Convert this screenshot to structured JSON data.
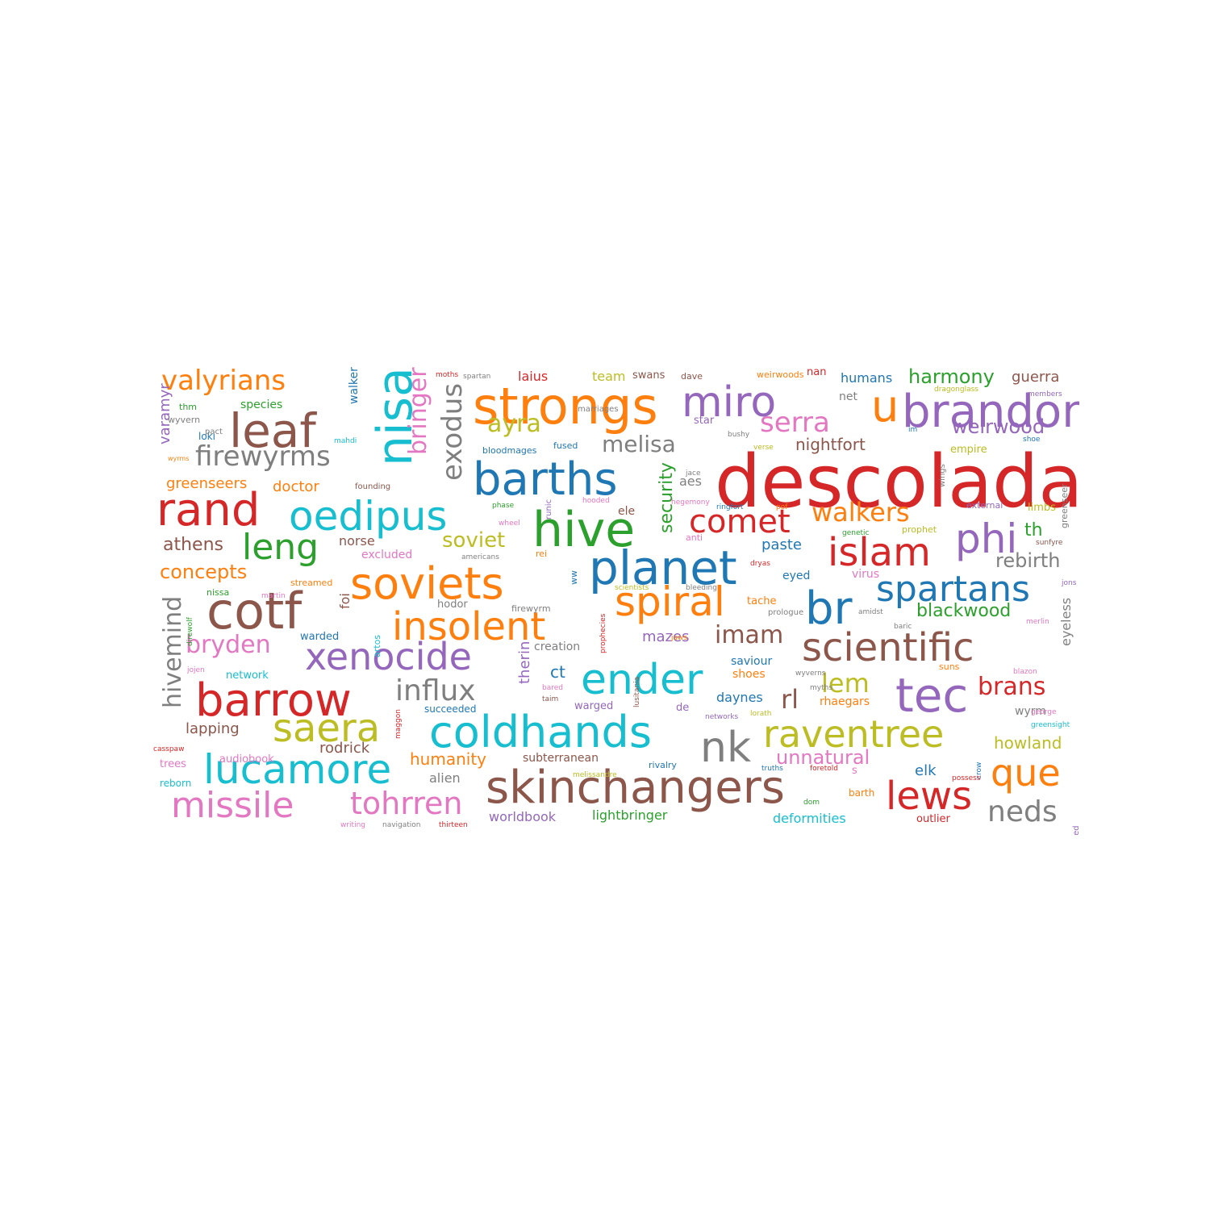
{
  "palette": {
    "blue": "#1f77b4",
    "orange": "#ff7f0e",
    "green": "#2ca02c",
    "red": "#d62728",
    "purple": "#9467bd",
    "brown": "#8c564b",
    "pink": "#e377c2",
    "gray": "#7f7f7f",
    "olive": "#bcbd22",
    "cyan": "#17becf"
  },
  "words": [
    {
      "text": "descolada",
      "color": "red",
      "weight": 100
    },
    {
      "text": "strongs",
      "color": "orange",
      "weight": 82
    },
    {
      "text": "miro",
      "color": "purple",
      "weight": 75
    },
    {
      "text": "brandon",
      "color": "purple",
      "weight": 70
    },
    {
      "text": "barths",
      "color": "blue",
      "weight": 75
    },
    {
      "text": "hive",
      "color": "green",
      "weight": 80
    },
    {
      "text": "oedipus",
      "color": "cyan",
      "weight": 68
    },
    {
      "text": "rand",
      "color": "red",
      "weight": 70
    },
    {
      "text": "leaf",
      "color": "brown",
      "weight": 66
    },
    {
      "text": "nisa",
      "color": "cyan",
      "weight": 60
    },
    {
      "text": "planet",
      "color": "blue",
      "weight": 73
    },
    {
      "text": "islam",
      "color": "red",
      "weight": 62
    },
    {
      "text": "phi",
      "color": "purple",
      "weight": 60
    },
    {
      "text": "soviets",
      "color": "orange",
      "weight": 70
    },
    {
      "text": "cotf",
      "color": "brown",
      "weight": 80
    },
    {
      "text": "insolent",
      "color": "orange",
      "weight": 66
    },
    {
      "text": "spiral",
      "color": "orange",
      "weight": 58
    },
    {
      "text": "br",
      "color": "blue",
      "weight": 68
    },
    {
      "text": "spartans",
      "color": "blue",
      "weight": 58
    },
    {
      "text": "scientific",
      "color": "brown",
      "weight": 64
    },
    {
      "text": "xenocide",
      "color": "purple",
      "weight": 62
    },
    {
      "text": "ender",
      "color": "cyan",
      "weight": 64
    },
    {
      "text": "tec",
      "color": "purple",
      "weight": 74
    },
    {
      "text": "barrow",
      "color": "red",
      "weight": 74
    },
    {
      "text": "coldhands",
      "color": "cyan",
      "weight": 68
    },
    {
      "text": "nk",
      "color": "gray",
      "weight": 62
    },
    {
      "text": "raventree",
      "color": "olive",
      "weight": 58
    },
    {
      "text": "saera",
      "color": "olive",
      "weight": 58
    },
    {
      "text": "lucamore",
      "color": "cyan",
      "weight": 60
    },
    {
      "text": "skinchangers",
      "color": "brown",
      "weight": 68
    },
    {
      "text": "que",
      "color": "orange",
      "weight": 56
    },
    {
      "text": "lews",
      "color": "red",
      "weight": 58
    },
    {
      "text": "missile",
      "color": "pink",
      "weight": 58
    },
    {
      "text": "tohrren",
      "color": "pink",
      "weight": 48
    },
    {
      "text": "u",
      "color": "orange",
      "weight": 68
    },
    {
      "text": "comet",
      "color": "red",
      "weight": 50
    },
    {
      "text": "leng",
      "color": "green",
      "weight": 52
    },
    {
      "text": "valyrians",
      "color": "orange",
      "weight": 46
    },
    {
      "text": "firewyrms",
      "color": "gray",
      "weight": 46
    },
    {
      "text": "exodus",
      "color": "gray",
      "weight": 44
    },
    {
      "text": "bringer",
      "color": "pink",
      "weight": 42
    },
    {
      "text": "serra",
      "color": "pink",
      "weight": 44
    },
    {
      "text": "melisa",
      "color": "gray",
      "weight": 36
    },
    {
      "text": "ayra",
      "color": "olive",
      "weight": 40
    },
    {
      "text": "walkers",
      "color": "orange",
      "weight": 40
    },
    {
      "text": "influx",
      "color": "gray",
      "weight": 46
    },
    {
      "text": "imam",
      "color": "brown",
      "weight": 38
    },
    {
      "text": "bryden",
      "color": "pink",
      "weight": 40
    },
    {
      "text": "hivemind",
      "color": "gray",
      "weight": 40
    },
    {
      "text": "neds",
      "color": "gray",
      "weight": 44
    },
    {
      "text": "brans",
      "color": "red",
      "weight": 38
    },
    {
      "text": "lem",
      "color": "olive",
      "weight": 40
    },
    {
      "text": "rl",
      "color": "brown",
      "weight": 38
    },
    {
      "text": "weirwood",
      "color": "purple",
      "weight": 32
    },
    {
      "text": "harmony",
      "color": "green",
      "weight": 30
    },
    {
      "text": "rebirth",
      "color": "gray",
      "weight": 30
    },
    {
      "text": "blackwood",
      "color": "green",
      "weight": 28
    },
    {
      "text": "soviet",
      "color": "olive",
      "weight": 30
    },
    {
      "text": "security",
      "color": "green",
      "weight": 28
    },
    {
      "text": "unnatural",
      "color": "pink",
      "weight": 30
    },
    {
      "text": "concepts",
      "color": "orange",
      "weight": 28
    },
    {
      "text": "athens",
      "color": "brown",
      "weight": 26
    },
    {
      "text": "nightfort",
      "color": "brown",
      "weight": 24
    },
    {
      "text": "humanity",
      "color": "orange",
      "weight": 24
    },
    {
      "text": "rodrick",
      "color": "brown",
      "weight": 22
    },
    {
      "text": "lapping",
      "color": "brown",
      "weight": 22
    },
    {
      "text": "doctor",
      "color": "orange",
      "weight": 22
    },
    {
      "text": "greenseers",
      "color": "orange",
      "weight": 20
    },
    {
      "text": "varamyr",
      "color": "purple",
      "weight": 24
    },
    {
      "text": "mazes",
      "color": "purple",
      "weight": 22
    },
    {
      "text": "howland",
      "color": "olive",
      "weight": 24
    },
    {
      "text": "paste",
      "color": "blue",
      "weight": 22
    },
    {
      "text": "ct",
      "color": "blue",
      "weight": 24
    },
    {
      "text": "therin",
      "color": "purple",
      "weight": 22
    },
    {
      "text": "lightbringer",
      "color": "green",
      "weight": 20
    },
    {
      "text": "worldbook",
      "color": "purple",
      "weight": 20
    },
    {
      "text": "deformities",
      "color": "cyan",
      "weight": 20
    },
    {
      "text": "daynes",
      "color": "blue",
      "weight": 20
    },
    {
      "text": "aes",
      "color": "gray",
      "weight": 18
    },
    {
      "text": "elk",
      "color": "blue",
      "weight": 22
    },
    {
      "text": "guerra",
      "color": "brown",
      "weight": 20
    },
    {
      "text": "humans",
      "color": "blue",
      "weight": 18
    },
    {
      "text": "eyeless",
      "color": "gray",
      "weight": 20
    },
    {
      "text": "laius",
      "color": "red",
      "weight": 18
    },
    {
      "text": "team",
      "color": "olive",
      "weight": 18
    },
    {
      "text": "species",
      "color": "green",
      "weight": 16
    },
    {
      "text": "walker",
      "color": "blue",
      "weight": 16
    },
    {
      "text": "norse",
      "color": "brown",
      "weight": 18
    },
    {
      "text": "foi",
      "color": "brown",
      "weight": 18
    },
    {
      "text": "excluded",
      "color": "pink",
      "weight": 16
    },
    {
      "text": "alien",
      "color": "gray",
      "weight": 18
    },
    {
      "text": "creation",
      "color": "gray",
      "weight": 16
    },
    {
      "text": "subterranean",
      "color": "brown",
      "weight": 16
    },
    {
      "text": "hodor",
      "color": "gray",
      "weight": 14
    },
    {
      "text": "warded",
      "color": "blue",
      "weight": 14
    },
    {
      "text": "network",
      "color": "cyan",
      "weight": 14
    },
    {
      "text": "audiobook",
      "color": "pink",
      "weight": 14
    },
    {
      "text": "trees",
      "color": "pink",
      "weight": 14
    },
    {
      "text": "reborn",
      "color": "cyan",
      "weight": 12
    },
    {
      "text": "succeeded",
      "color": "blue",
      "weight": 12
    },
    {
      "text": "warged",
      "color": "purple",
      "weight": 14
    },
    {
      "text": "rhaegars",
      "color": "orange",
      "weight": 16
    },
    {
      "text": "wyrm",
      "color": "gray",
      "weight": 16
    },
    {
      "text": "outlier",
      "color": "red",
      "weight": 14
    },
    {
      "text": "barth",
      "color": "orange",
      "weight": 12
    },
    {
      "text": "shoes",
      "color": "orange",
      "weight": 16
    },
    {
      "text": "saviour",
      "color": "blue",
      "weight": 14
    },
    {
      "text": "eyed",
      "color": "blue",
      "weight": 16
    },
    {
      "text": "virus",
      "color": "pink",
      "weight": 16
    },
    {
      "text": "tache",
      "color": "orange",
      "weight": 14
    },
    {
      "text": "nan",
      "color": "red",
      "weight": 14
    },
    {
      "text": "net",
      "color": "gray",
      "weight": 16
    },
    {
      "text": "swans",
      "color": "brown",
      "weight": 14
    },
    {
      "text": "dave",
      "color": "brown",
      "weight": 12
    },
    {
      "text": "weirwoods",
      "color": "orange",
      "weight": 12
    },
    {
      "text": "star",
      "color": "purple",
      "weight": 14
    },
    {
      "text": "ele",
      "color": "brown",
      "weight": 16
    },
    {
      "text": "empire",
      "color": "olive",
      "weight": 14
    },
    {
      "text": "limbs",
      "color": "olive",
      "weight": 14
    },
    {
      "text": "th",
      "color": "green",
      "weight": 22
    },
    {
      "text": "prophet",
      "color": "olive",
      "weight": 12
    },
    {
      "text": "rivalry",
      "color": "blue",
      "weight": 12
    },
    {
      "text": "de",
      "color": "purple",
      "weight": 14
    },
    {
      "text": "s",
      "color": "pink",
      "weight": 14
    },
    {
      "text": "suns",
      "color": "orange",
      "weight": 12
    },
    {
      "text": "rei",
      "color": "orange",
      "weight": 12
    },
    {
      "text": "ww",
      "color": "blue",
      "weight": 12
    },
    {
      "text": "bloodmages",
      "color": "blue",
      "weight": 11
    },
    {
      "text": "fused",
      "color": "blue",
      "weight": 12
    },
    {
      "text": "marriages",
      "color": "gray",
      "weight": 10
    },
    {
      "text": "founding",
      "color": "brown",
      "weight": 10
    },
    {
      "text": "loki",
      "color": "blue",
      "weight": 12
    },
    {
      "text": "thm",
      "color": "green",
      "weight": 12
    },
    {
      "text": "pact",
      "color": "gray",
      "weight": 10
    },
    {
      "text": "wyvern",
      "color": "gray",
      "weight": 11
    },
    {
      "text": "mahdi",
      "color": "cyan",
      "weight": 10
    },
    {
      "text": "wyrms",
      "color": "orange",
      "weight": 9
    },
    {
      "text": "moths",
      "color": "red",
      "weight": 10
    },
    {
      "text": "spartan",
      "color": "gray",
      "weight": 10
    },
    {
      "text": "runic",
      "color": "purple",
      "weight": 10
    },
    {
      "text": "phase",
      "color": "green",
      "weight": 10
    },
    {
      "text": "wheel",
      "color": "pink",
      "weight": 10
    },
    {
      "text": "americans",
      "color": "gray",
      "weight": 10
    },
    {
      "text": "hooded",
      "color": "pink",
      "weight": 10
    },
    {
      "text": "hegemony",
      "color": "pink",
      "weight": 10
    },
    {
      "text": "ringfort",
      "color": "blue",
      "weight": 10
    },
    {
      "text": "pof",
      "color": "orange",
      "weight": 10
    },
    {
      "text": "jace",
      "color": "gray",
      "weight": 10
    },
    {
      "text": "bushy",
      "color": "gray",
      "weight": 10
    },
    {
      "text": "verse",
      "color": "olive",
      "weight": 10
    },
    {
      "text": "im",
      "color": "blue",
      "weight": 10
    },
    {
      "text": "wings",
      "color": "gray",
      "weight": 10
    },
    {
      "text": "dragonglass",
      "color": "olive",
      "weight": 10
    },
    {
      "text": "members",
      "color": "purple",
      "weight": 10
    },
    {
      "text": "shoe",
      "color": "blue",
      "weight": 10
    },
    {
      "text": "greenseer",
      "color": "gray",
      "weight": 11
    },
    {
      "text": "external",
      "color": "purple",
      "weight": 12
    },
    {
      "text": "genetic",
      "color": "green",
      "weight": 10
    },
    {
      "text": "sunfyre",
      "color": "brown",
      "weight": 10
    },
    {
      "text": "jons",
      "color": "purple",
      "weight": 10
    },
    {
      "text": "anti",
      "color": "pink",
      "weight": 12
    },
    {
      "text": "dryas",
      "color": "red",
      "weight": 10
    },
    {
      "text": "scientists",
      "color": "olive",
      "weight": 10
    },
    {
      "text": "bleeding",
      "color": "gray",
      "weight": 10
    },
    {
      "text": "prophecies",
      "color": "red",
      "weight": 10
    },
    {
      "text": "firewyrm",
      "color": "gray",
      "weight": 11
    },
    {
      "text": "streamed",
      "color": "orange",
      "weight": 11
    },
    {
      "text": "nissa",
      "color": "green",
      "weight": 12
    },
    {
      "text": "martin",
      "color": "pink",
      "weight": 10
    },
    {
      "text": "direwolf",
      "color": "green",
      "weight": 10
    },
    {
      "text": "artos",
      "color": "cyan",
      "weight": 11
    },
    {
      "text": "lusitania",
      "color": "brown",
      "weight": 10
    },
    {
      "text": "prologue",
      "color": "gray",
      "weight": 11
    },
    {
      "text": "amidst",
      "color": "gray",
      "weight": 10
    },
    {
      "text": "baric",
      "color": "gray",
      "weight": 10
    },
    {
      "text": "merlin",
      "color": "pink",
      "weight": 10
    },
    {
      "text": "jaws",
      "color": "orange",
      "weight": 10
    },
    {
      "text": "wyverns",
      "color": "gray",
      "weight": 10
    },
    {
      "text": "myths",
      "color": "gray",
      "weight": 10
    },
    {
      "text": "blazon",
      "color": "pink",
      "weight": 10
    },
    {
      "text": "jojen",
      "color": "pink",
      "weight": 10
    },
    {
      "text": "bared",
      "color": "pink",
      "weight": 10
    },
    {
      "text": "taim",
      "color": "brown",
      "weight": 10
    },
    {
      "text": "maggon",
      "color": "red",
      "weight": 10
    },
    {
      "text": "networks",
      "color": "purple",
      "weight": 10
    },
    {
      "text": "lorath",
      "color": "olive",
      "weight": 10
    },
    {
      "text": "george",
      "color": "pink",
      "weight": 10
    },
    {
      "text": "greensight",
      "color": "cyan",
      "weight": 10
    },
    {
      "text": "casspaw",
      "color": "red",
      "weight": 9
    },
    {
      "text": "truths",
      "color": "blue",
      "weight": 10
    },
    {
      "text": "foretold",
      "color": "red",
      "weight": 10
    },
    {
      "text": "melissandre",
      "color": "olive",
      "weight": 10
    },
    {
      "text": "crow",
      "color": "blue",
      "weight": 10
    },
    {
      "text": "possess",
      "color": "red",
      "weight": 10
    },
    {
      "text": "predestined",
      "color": "purple",
      "weight": 10
    },
    {
      "text": "dom",
      "color": "green",
      "weight": 10
    },
    {
      "text": "writing",
      "color": "pink",
      "weight": 10
    },
    {
      "text": "navigation",
      "color": "gray",
      "weight": 10
    },
    {
      "text": "thirteen",
      "color": "red",
      "weight": 10
    }
  ]
}
